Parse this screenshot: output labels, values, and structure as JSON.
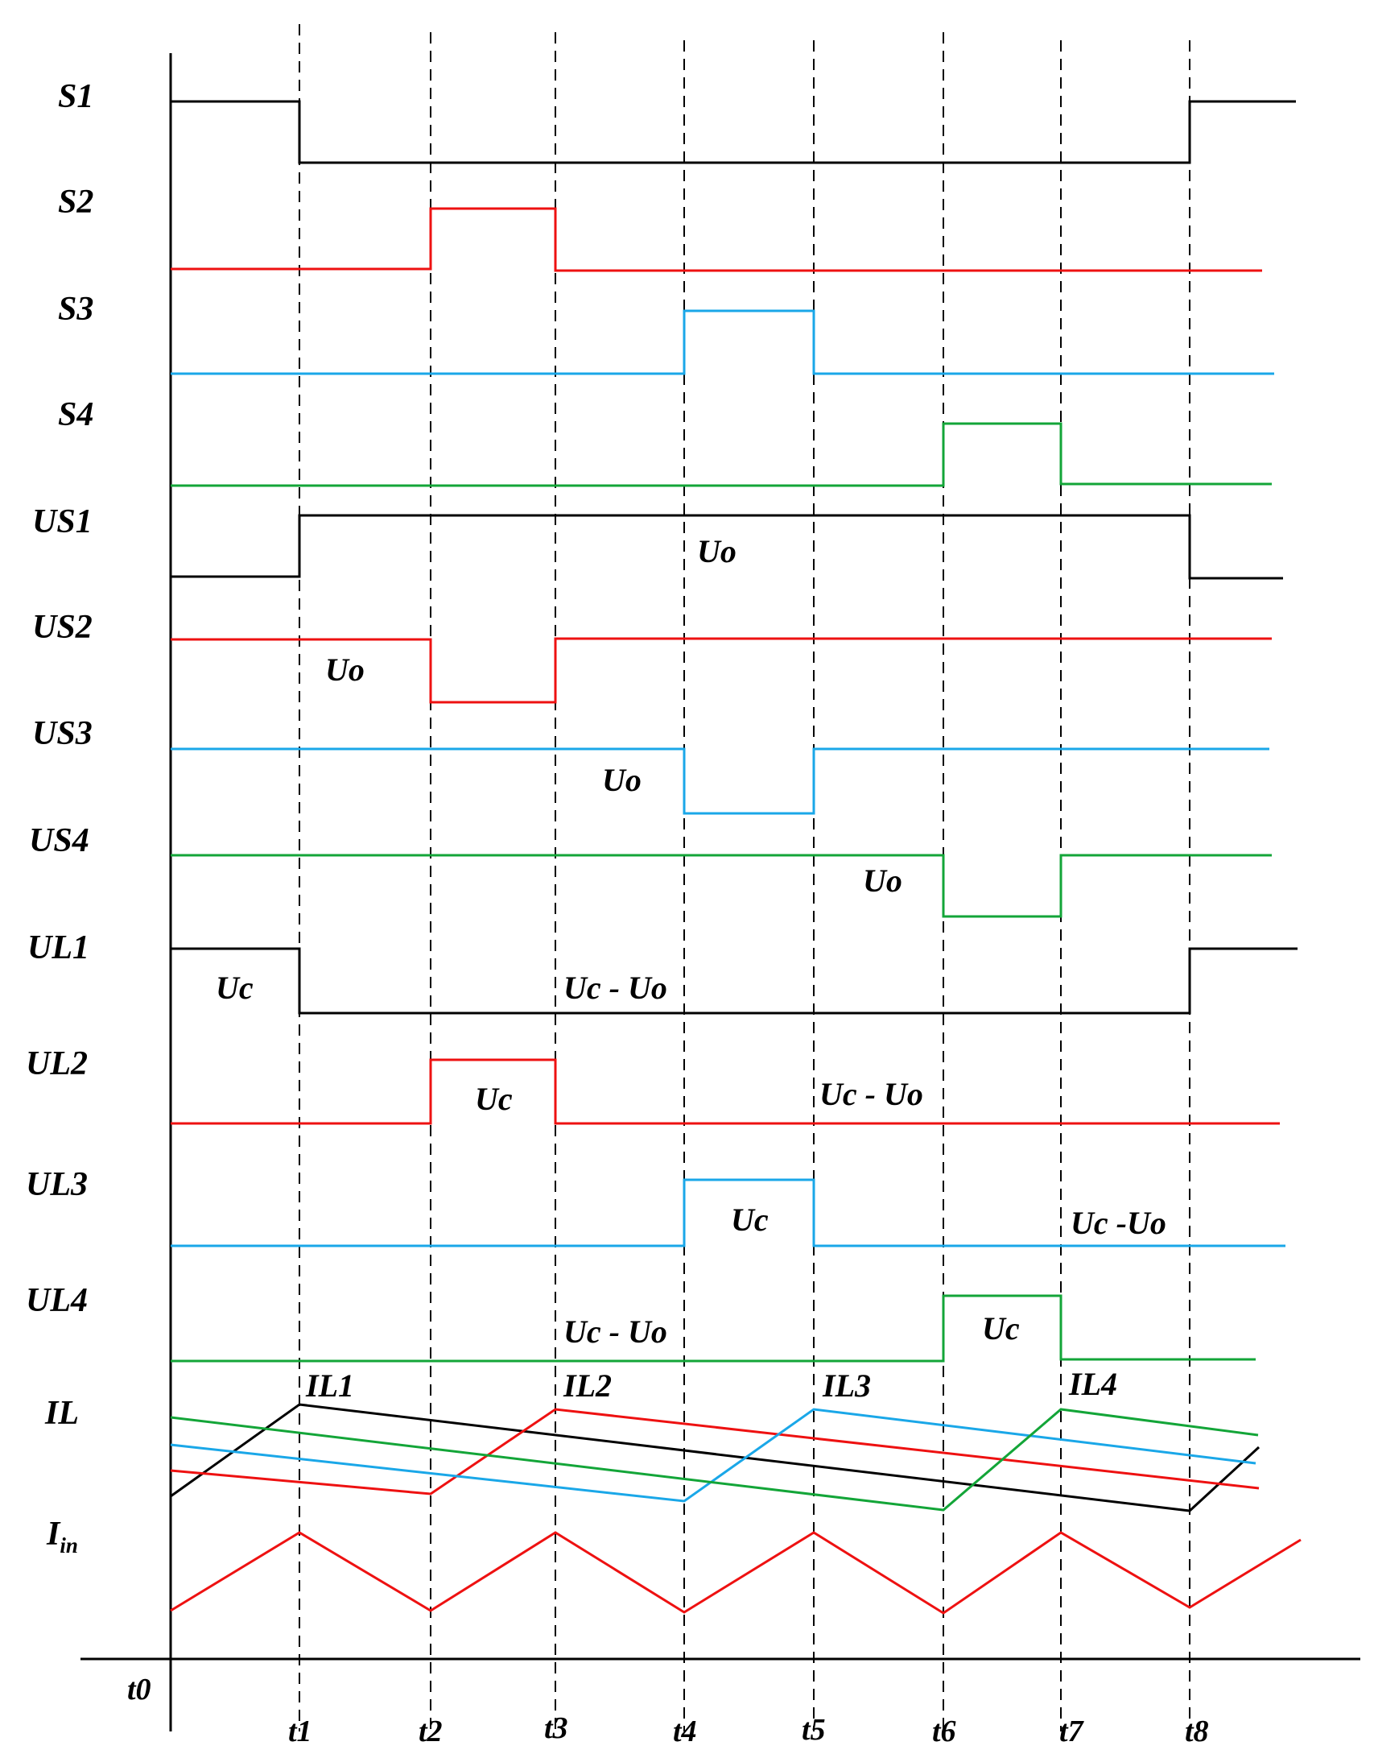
{
  "colors": {
    "black": "#000000",
    "red": "#ee1111",
    "cyan": "#1aa7e8",
    "green": "#13a538"
  },
  "rows": [
    {
      "key": "S1",
      "label": "S1"
    },
    {
      "key": "S2",
      "label": "S2"
    },
    {
      "key": "S3",
      "label": "S3"
    },
    {
      "key": "S4",
      "label": "S4"
    },
    {
      "key": "US1",
      "label": "US1"
    },
    {
      "key": "US2",
      "label": "US2"
    },
    {
      "key": "US3",
      "label": "US3"
    },
    {
      "key": "US4",
      "label": "US4"
    },
    {
      "key": "UL1",
      "label": "UL1"
    },
    {
      "key": "UL2",
      "label": "UL2"
    },
    {
      "key": "UL3",
      "label": "UL3"
    },
    {
      "key": "UL4",
      "label": "UL4"
    },
    {
      "key": "IL",
      "label": "IL"
    },
    {
      "key": "Iin",
      "label": "I",
      "subscript": "in"
    }
  ],
  "time_labels": {
    "t0": "t0",
    "ticks": [
      "t1",
      "t2",
      "t3",
      "t4",
      "t5",
      "t6",
      "t7",
      "t8"
    ]
  },
  "annotations": {
    "us1": "Uo",
    "us2": "Uo",
    "us3": "Uo",
    "us4": "Uo",
    "ul1_low": "Uc",
    "ul1_high": "Uc - Uo",
    "ul2_low": "Uc",
    "ul2_high": "Uc - Uo",
    "ul3_low": "Uc",
    "ul3_high": "Uc -Uo",
    "ul4_high": "Uc - Uo",
    "ul4_low": "Uc",
    "il1": "IL1",
    "il2": "IL2",
    "il3": "IL3",
    "il4": "IL4"
  }
}
